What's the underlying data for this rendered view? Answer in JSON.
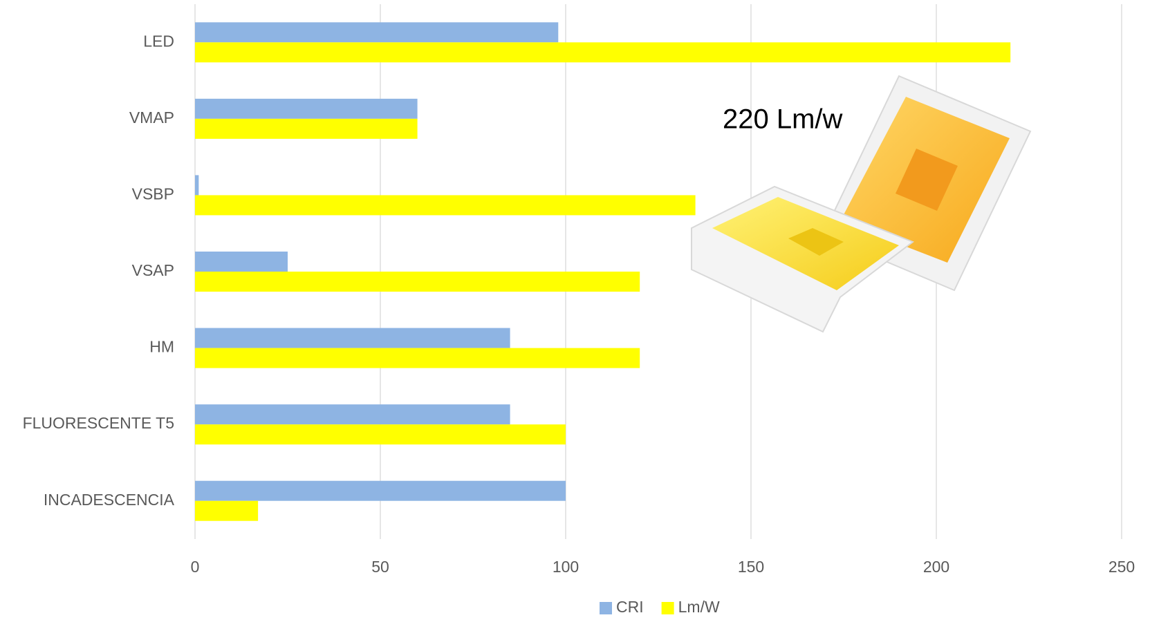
{
  "chart_data": {
    "type": "hbar",
    "annotation": "220 Lm/w",
    "categories": [
      "LED",
      "VMAP",
      "VSBP",
      "VSAP",
      "HM",
      "FLUORESCENTE T5",
      "INCADESCENCIA"
    ],
    "series": [
      {
        "name": "CRI",
        "color": "#8eb4e3",
        "values": [
          98,
          60,
          1,
          25,
          85,
          85,
          100
        ]
      },
      {
        "name": "Lm/W",
        "color": "#ffff00",
        "values": [
          220,
          60,
          135,
          120,
          120,
          100,
          17
        ]
      }
    ],
    "xlim": [
      0,
      250
    ],
    "xticks": [
      0,
      50,
      100,
      150,
      200,
      250
    ],
    "grid": true,
    "legend": "bottom"
  }
}
